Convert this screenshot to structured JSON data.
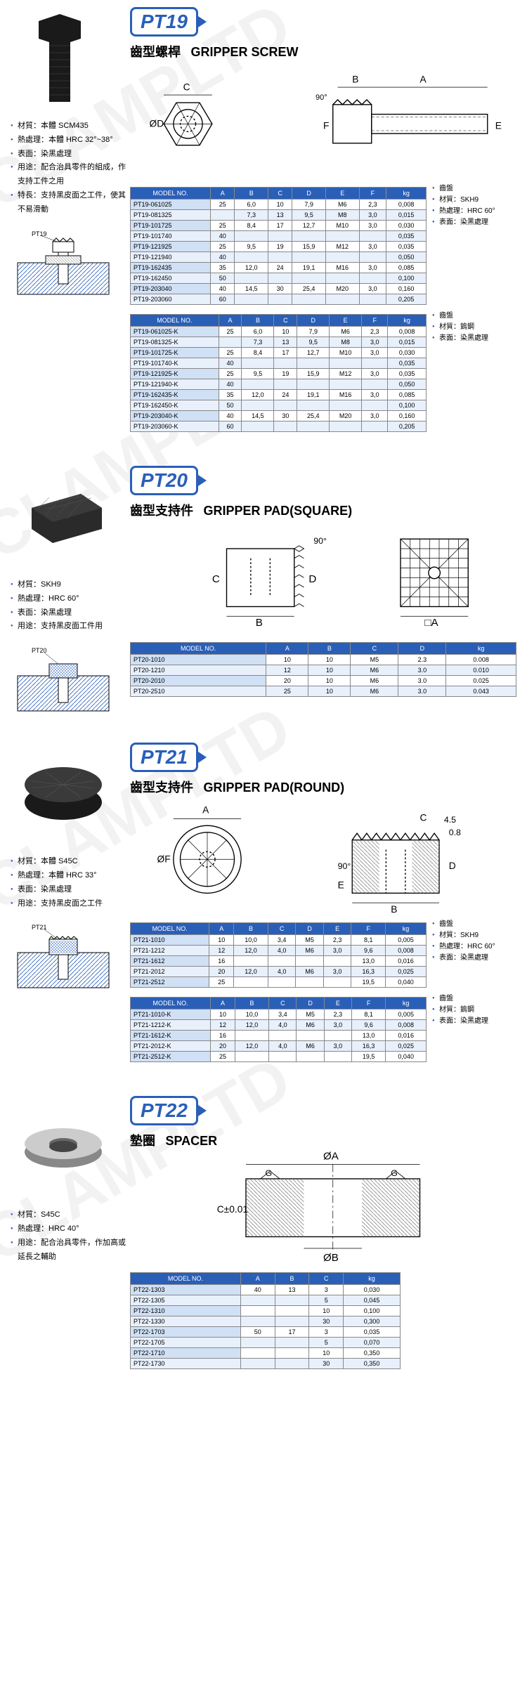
{
  "pt19": {
    "badge": "PT19",
    "title_cn": "齒型螺桿",
    "title_en": "GRIPPER SCREW",
    "specs": [
      "材質：本體 SCM435",
      "熱處理：本體 HRC 32°~38°",
      "表面：染黑處理",
      "用途：配合治具零件的組成，作支持工件之用",
      "特長：支持黑皮面之工件，使其不易滑動"
    ],
    "table1_headers": [
      "MODEL NO.",
      "A",
      "B",
      "C",
      "D",
      "E",
      "F",
      "kg"
    ],
    "table1_rows": [
      [
        "PT19-061025",
        "25",
        "6,0",
        "10",
        "7,9",
        "M6",
        "2,3",
        "0,008"
      ],
      [
        "PT19-081325",
        "",
        "7,3",
        "13",
        "9,5",
        "M8",
        "3,0",
        "0,015"
      ],
      [
        "PT19-101725",
        "25",
        "8,4",
        "17",
        "12,7",
        "M10",
        "3,0",
        "0,030"
      ],
      [
        "PT19-101740",
        "40",
        "",
        "",
        "",
        "",
        "",
        "0,035"
      ],
      [
        "PT19-121925",
        "25",
        "9,5",
        "19",
        "15,9",
        "M12",
        "3,0",
        "0,035"
      ],
      [
        "PT19-121940",
        "40",
        "",
        "",
        "",
        "",
        "",
        "0,050"
      ],
      [
        "PT19-162435",
        "35",
        "12,0",
        "24",
        "19,1",
        "M16",
        "3,0",
        "0,085"
      ],
      [
        "PT19-162450",
        "50",
        "",
        "",
        "",
        "",
        "",
        "0,100"
      ],
      [
        "PT19-203040",
        "40",
        "14,5",
        "30",
        "25,4",
        "M20",
        "3,0",
        "0,160"
      ],
      [
        "PT19-203060",
        "60",
        "",
        "",
        "",
        "",
        "",
        "0,205"
      ]
    ],
    "notes1": [
      "齒盤",
      "材質：SKH9",
      "熱處理：HRC 60°",
      "表面：染黑處理"
    ],
    "table2_headers": [
      "MODEL NO.",
      "A",
      "B",
      "C",
      "D",
      "E",
      "F",
      "kg"
    ],
    "table2_rows": [
      [
        "PT19-061025-K",
        "25",
        "6,0",
        "10",
        "7,9",
        "M6",
        "2,3",
        "0,008"
      ],
      [
        "PT19-081325-K",
        "",
        "7,3",
        "13",
        "9,5",
        "M8",
        "3,0",
        "0,015"
      ],
      [
        "PT19-101725-K",
        "25",
        "8,4",
        "17",
        "12,7",
        "M10",
        "3,0",
        "0,030"
      ],
      [
        "PT19-101740-K",
        "40",
        "",
        "",
        "",
        "",
        "",
        "0,035"
      ],
      [
        "PT19-121925-K",
        "25",
        "9,5",
        "19",
        "15,9",
        "M12",
        "3,0",
        "0,035"
      ],
      [
        "PT19-121940-K",
        "40",
        "",
        "",
        "",
        "",
        "",
        "0,050"
      ],
      [
        "PT19-162435-K",
        "35",
        "12,0",
        "24",
        "19,1",
        "M16",
        "3,0",
        "0,085"
      ],
      [
        "PT19-162450-K",
        "50",
        "",
        "",
        "",
        "",
        "",
        "0,100"
      ],
      [
        "PT19-203040-K",
        "40",
        "14,5",
        "30",
        "25,4",
        "M20",
        "3,0",
        "0,160"
      ],
      [
        "PT19-203060-K",
        "60",
        "",
        "",
        "",
        "",
        "",
        "0,205"
      ]
    ],
    "notes2": [
      "齒盤",
      "材質：鎢鋼",
      "表面：染黑處理"
    ]
  },
  "pt20": {
    "badge": "PT20",
    "title_cn": "齒型支持件",
    "title_en": "GRIPPER PAD(SQUARE)",
    "specs": [
      "材質：SKH9",
      "熱處理：HRC 60°",
      "表面：染黑處理",
      "用途：支持黑皮面工件用"
    ],
    "table_headers": [
      "MODEL NO.",
      "A",
      "B",
      "C",
      "D",
      "kg"
    ],
    "table_rows": [
      [
        "PT20-1010",
        "10",
        "10",
        "M5",
        "2.3",
        "0.008"
      ],
      [
        "PT20-1210",
        "12",
        "10",
        "M6",
        "3.0",
        "0.010"
      ],
      [
        "PT20-2010",
        "20",
        "10",
        "M6",
        "3.0",
        "0.025"
      ],
      [
        "PT20-2510",
        "25",
        "10",
        "M6",
        "3.0",
        "0.043"
      ]
    ]
  },
  "pt21": {
    "badge": "PT21",
    "title_cn": "齒型支持件",
    "title_en": "GRIPPER PAD(ROUND)",
    "specs": [
      "材質：本體 S45C",
      "熱處理：本體 HRC 33°",
      "表面：染黑處理",
      "用途：支持黑皮面之工件"
    ],
    "table1_headers": [
      "MODEL NO.",
      "A",
      "B",
      "C",
      "D",
      "E",
      "F",
      "kg"
    ],
    "table1_rows": [
      [
        "PT21-1010",
        "10",
        "10,0",
        "3,4",
        "M5",
        "2,3",
        "8,1",
        "0,005"
      ],
      [
        "PT21-1212",
        "12",
        "12,0",
        "4,0",
        "M6",
        "3,0",
        "9,6",
        "0,008"
      ],
      [
        "PT21-1612",
        "16",
        "",
        "",
        "",
        "",
        "13,0",
        "0,016"
      ],
      [
        "PT21-2012",
        "20",
        "12,0",
        "4,0",
        "M6",
        "3,0",
        "16,3",
        "0,025"
      ],
      [
        "PT21-2512",
        "25",
        "",
        "",
        "",
        "",
        "19,5",
        "0,040"
      ]
    ],
    "notes1": [
      "齒盤",
      "材質：SKH9",
      "熱處理：HRC 60°",
      "表面：染黑處理"
    ],
    "table2_headers": [
      "MODEL NO.",
      "A",
      "B",
      "C",
      "D",
      "E",
      "F",
      "kg"
    ],
    "table2_rows": [
      [
        "PT21-1010-K",
        "10",
        "10,0",
        "3,4",
        "M5",
        "2,3",
        "8,1",
        "0,005"
      ],
      [
        "PT21-1212-K",
        "12",
        "12,0",
        "4,0",
        "M6",
        "3,0",
        "9,6",
        "0,008"
      ],
      [
        "PT21-1612-K",
        "16",
        "",
        "",
        "",
        "",
        "13,0",
        "0,016"
      ],
      [
        "PT21-2012-K",
        "20",
        "12,0",
        "4,0",
        "M6",
        "3,0",
        "16,3",
        "0,025"
      ],
      [
        "PT21-2512-K",
        "25",
        "",
        "",
        "",
        "",
        "19,5",
        "0,040"
      ]
    ],
    "notes2": [
      "齒盤",
      "材質：鎢鋼",
      "表面：染黑處理"
    ]
  },
  "pt22": {
    "badge": "PT22",
    "title_cn": "墊圈",
    "title_en": "SPACER",
    "specs": [
      "材質：S45C",
      "熱處理：HRC 40°",
      "用途：配合治具零件，作加高或延長之輔助"
    ],
    "table_headers": [
      "MODEL NO.",
      "A",
      "B",
      "C",
      "kg"
    ],
    "table_rows": [
      [
        "PT22-1303",
        "40",
        "13",
        "3",
        "0,030"
      ],
      [
        "PT22-1305",
        "",
        "",
        "5",
        "0,045"
      ],
      [
        "PT22-1310",
        "",
        "",
        "10",
        "0,100"
      ],
      [
        "PT22-1330",
        "",
        "",
        "30",
        "0,300"
      ],
      [
        "PT22-1703",
        "50",
        "17",
        "3",
        "0,035"
      ],
      [
        "PT22-1705",
        "",
        "",
        "5",
        "0,070"
      ],
      [
        "PT22-1710",
        "",
        "",
        "10",
        "0,350"
      ],
      [
        "PT22-1730",
        "",
        "",
        "30",
        "0,350"
      ]
    ]
  }
}
